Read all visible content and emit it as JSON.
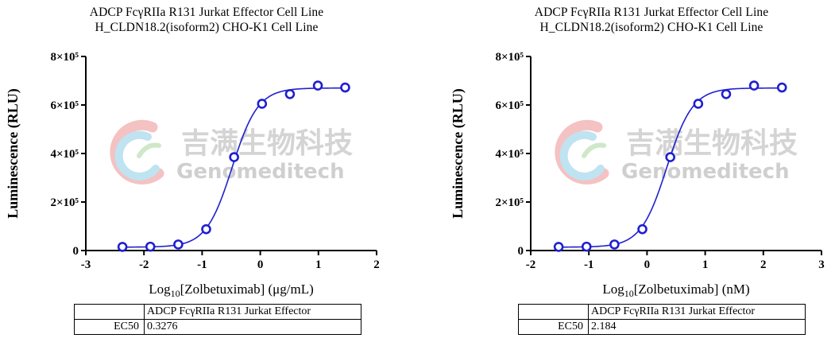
{
  "chart_data": [
    {
      "type": "scatter",
      "title_lines": [
        "ADCP FcγRIIa R131 Jurkat Effector Cell Line",
        "H_CLDN18.2(isoform2) CHO-K1 Cell Line"
      ],
      "ylabel": "Luminescence (RLU)",
      "xlabel_prefix": "Log",
      "xlabel_sub": "10",
      "xlabel_suffix": "[Zolbetuximab] (μg/mL)",
      "xlim": [
        -3,
        2
      ],
      "ylim": [
        0,
        800000
      ],
      "xticks": [
        -3,
        -2,
        -1,
        0,
        1,
        2
      ],
      "xtick_labels": [
        "-3",
        "-2",
        "-1",
        "0",
        "1",
        "2"
      ],
      "yticks": [
        0,
        200000,
        400000,
        600000,
        800000
      ],
      "ytick_labels": [
        "0",
        "2×10⁵",
        "4×10⁵",
        "6×10⁵",
        "8×10⁵"
      ],
      "series": [
        {
          "x": [
            -2.37,
            -1.89,
            -1.41,
            -0.93,
            -0.45,
            0.03,
            0.51,
            0.99,
            1.46
          ],
          "y": [
            15000,
            16000,
            25000,
            88000,
            385000,
            605000,
            645000,
            680000,
            672000
          ],
          "fit": {
            "model": "4PL",
            "bottom": 14000,
            "top": 670000,
            "logEC50": -0.4846,
            "hill": 1.95
          }
        }
      ],
      "color": "#1f1fd0",
      "table": {
        "header": "ADCP FcγRIIa R131 Jurkat Effector",
        "row_label": "EC50",
        "value": "0.3276"
      }
    },
    {
      "type": "scatter",
      "title_lines": [
        "ADCP FcγRIIa R131 Jurkat Effector Cell Line",
        "H_CLDN18.2(isoform2) CHO-K1 Cell Line"
      ],
      "ylabel": "Luminescence (RLU)",
      "xlabel_prefix": "Log",
      "xlabel_sub": "10",
      "xlabel_suffix": "[Zolbetuximab] (nM)",
      "xlim": [
        -2,
        3
      ],
      "ylim": [
        0,
        800000
      ],
      "xticks": [
        -2,
        -1,
        0,
        1,
        2,
        3
      ],
      "xtick_labels": [
        "-2",
        "-1",
        "0",
        "1",
        "2",
        "3"
      ],
      "yticks": [
        0,
        200000,
        400000,
        600000,
        800000
      ],
      "ytick_labels": [
        "0",
        "2×10⁵",
        "4×10⁵",
        "6×10⁵",
        "8×10⁵"
      ],
      "series": [
        {
          "x": [
            -1.52,
            -1.04,
            -0.56,
            -0.08,
            0.4,
            0.88,
            1.36,
            1.84,
            2.32
          ],
          "y": [
            15000,
            16000,
            25000,
            88000,
            385000,
            605000,
            645000,
            680000,
            672000
          ],
          "fit": {
            "model": "4PL",
            "bottom": 14000,
            "top": 670000,
            "logEC50": 0.3393,
            "hill": 1.95
          }
        }
      ],
      "color": "#1f1fd0",
      "table": {
        "header": "ADCP FcγRIIa R131 Jurkat Effector",
        "row_label": "EC50",
        "value": "2.184"
      }
    }
  ],
  "watermark": {
    "cn": "吉满生物科技",
    "en": "Genomeditech"
  }
}
